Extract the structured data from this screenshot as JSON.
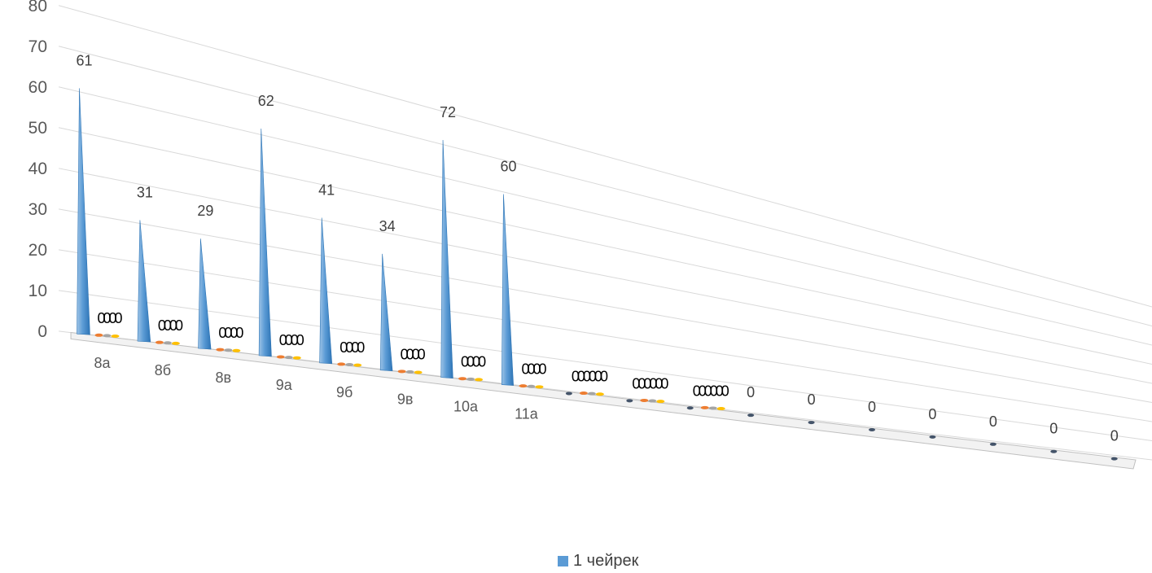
{
  "chart_data": {
    "type": "bar",
    "style": "3d-cone",
    "categories": [
      "8а",
      "8б",
      "8в",
      "9а",
      "9б",
      "9в",
      "10а",
      "11а",
      "",
      "",
      "",
      "",
      "",
      "",
      "",
      "",
      "",
      ""
    ],
    "series": [
      {
        "name": "1 чейрек",
        "values": [
          61,
          31,
          29,
          62,
          41,
          34,
          72,
          60,
          0,
          0,
          0,
          0,
          0,
          0,
          0,
          0,
          0,
          0
        ]
      },
      {
        "name": "",
        "values": [
          0,
          0,
          0,
          0,
          0,
          0,
          0,
          0,
          0,
          0,
          0,
          null,
          null,
          null,
          null,
          null,
          null,
          null
        ]
      },
      {
        "name": "",
        "values": [
          0,
          0,
          0,
          0,
          0,
          0,
          0,
          0,
          0,
          0,
          0,
          null,
          null,
          null,
          null,
          null,
          null,
          null
        ]
      },
      {
        "name": "",
        "values": [
          0,
          0,
          0,
          0,
          0,
          0,
          0,
          0,
          0,
          0,
          0,
          null,
          null,
          null,
          null,
          null,
          null,
          null
        ]
      }
    ],
    "y_ticks": [
      "0",
      "10",
      "20",
      "30",
      "40",
      "50",
      "60",
      "70",
      "80"
    ],
    "ylim": [
      0,
      80
    ],
    "grid": true,
    "legend_position": "bottom",
    "colors": {
      "series1": "#5B9BD5",
      "series2": "#ED7D31",
      "series3": "#A5A5A5",
      "series4": "#FFC000",
      "grid": "#D9D9D9",
      "text": "#595959"
    }
  },
  "legend": {
    "label": "1 чейрек"
  }
}
